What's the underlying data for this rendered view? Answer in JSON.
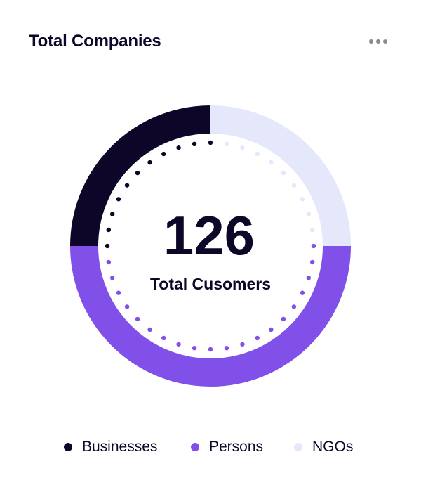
{
  "header": {
    "title": "Total Companies",
    "menu_icon": "more-horizontal-icon"
  },
  "chart_data": {
    "type": "pie",
    "variant": "donut",
    "center_value": "126",
    "center_label": "Total Cusomers",
    "categories": [
      "Businesses",
      "Persons",
      "NGOs"
    ],
    "values": [
      25,
      50,
      25
    ],
    "colors": [
      "#0d0628",
      "#8150e8",
      "#e5e7fa"
    ],
    "legend_position": "bottom"
  }
}
